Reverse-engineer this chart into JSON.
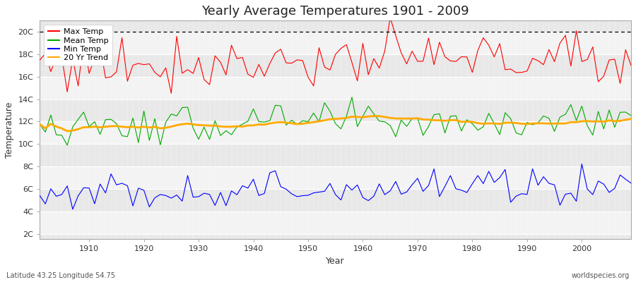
{
  "title": "Yearly Average Temperatures 1901 - 2009",
  "xlabel": "Year",
  "ylabel": "Temperature",
  "x_start": 1901,
  "x_end": 2009,
  "y_ticks": [
    2,
    4,
    6,
    8,
    10,
    12,
    14,
    16,
    18,
    20
  ],
  "y_tick_labels": [
    "2C",
    "4C",
    "6C",
    "8C",
    "10C",
    "12C",
    "14C",
    "16C",
    "18C",
    "20C"
  ],
  "ylim": [
    1.5,
    21.0
  ],
  "xlim": [
    1901,
    2009
  ],
  "fig_bg_color": "#ffffff",
  "plot_bg_color": "#e8e8e8",
  "grid_color": "#ffffff",
  "max_color": "#ff0000",
  "mean_color": "#00aa00",
  "min_color": "#0000ff",
  "trend_color": "#ffaa00",
  "legend_labels": [
    "Max Temp",
    "Mean Temp",
    "Min Temp",
    "20 Yr Trend"
  ],
  "dashed_line_y": 20,
  "bottom_left_text": "Latitude 43.25 Longitude 54.75",
  "bottom_right_text": "worldspecies.org",
  "x_major_ticks": [
    1910,
    1920,
    1930,
    1940,
    1950,
    1960,
    1970,
    1980,
    1990,
    2000
  ],
  "x_minor_ticks": [
    1905,
    1915,
    1925,
    1935,
    1945,
    1955,
    1965,
    1975,
    1985,
    1995,
    2005
  ]
}
